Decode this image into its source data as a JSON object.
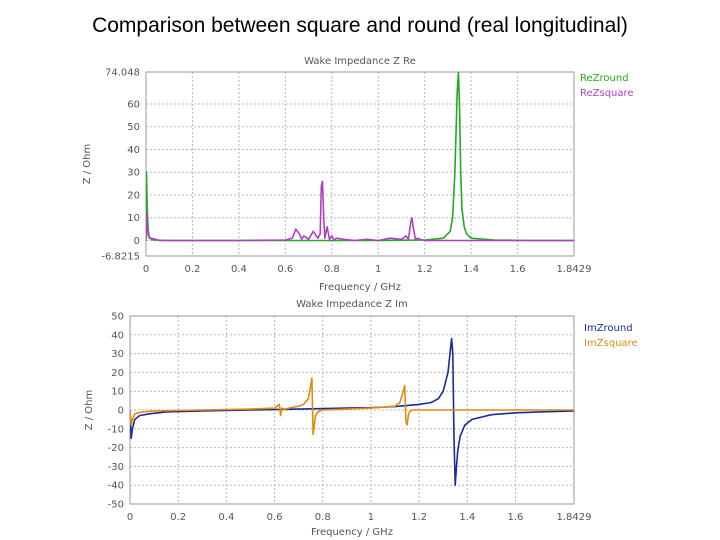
{
  "slide": {
    "title": "Comparison between square and round (real longitudinal)"
  },
  "chart_data": [
    {
      "type": "line",
      "title": "Wake Impedance Z Re",
      "xlabel": "Frequency / GHz",
      "ylabel": "Z / Ohm",
      "xlim": [
        0,
        1.8429
      ],
      "ylim": [
        -6.8215,
        74.048
      ],
      "xticks": [
        0,
        0.2,
        0.4,
        0.6,
        0.8,
        1,
        1.2,
        1.4,
        1.6,
        1.8429
      ],
      "xtick_labels": [
        "0",
        "0.2",
        "0.4",
        "0.6",
        "0.8",
        "1",
        "1.2",
        "1.4",
        "1.6",
        "1.8429"
      ],
      "yticks": [
        -6.8215,
        0,
        10,
        20,
        30,
        40,
        50,
        60,
        74.048
      ],
      "ytick_labels": [
        "-6.8215",
        "0",
        "10",
        "20",
        "30",
        "40",
        "50",
        "60",
        "74.048"
      ],
      "grid": true,
      "legend_position": "top-right",
      "series": [
        {
          "name": "ReZround",
          "color": "#22aa22",
          "x": [
            0,
            0.002,
            0.005,
            0.01,
            0.015,
            0.03,
            0.06,
            0.1,
            0.2,
            0.4,
            0.6,
            0.8,
            1.0,
            1.2,
            1.28,
            1.31,
            1.32,
            1.33,
            1.34,
            1.345,
            1.35,
            1.355,
            1.36,
            1.37,
            1.38,
            1.4,
            1.5,
            1.65,
            1.8429
          ],
          "y": [
            0,
            30,
            14,
            4,
            1,
            0.2,
            0.1,
            0,
            0,
            0,
            0,
            0,
            0,
            0.2,
            1,
            4,
            10,
            30,
            65,
            74,
            60,
            30,
            14,
            6,
            3,
            1,
            0.2,
            0,
            0
          ]
        },
        {
          "name": "ReZsquare",
          "color": "#b040c0",
          "x": [
            0,
            0.002,
            0.005,
            0.01,
            0.02,
            0.04,
            0.06,
            0.1,
            0.2,
            0.4,
            0.6,
            0.63,
            0.645,
            0.66,
            0.67,
            0.68,
            0.7,
            0.72,
            0.74,
            0.75,
            0.755,
            0.76,
            0.765,
            0.77,
            0.78,
            0.79,
            0.8,
            0.81,
            0.82,
            0.85,
            0.9,
            0.95,
            1.0,
            1.05,
            1.1,
            1.12,
            1.13,
            1.14,
            1.145,
            1.15,
            1.16,
            1.17,
            1.18,
            1.2,
            1.3,
            1.4,
            1.5,
            1.6,
            1.7,
            1.8429
          ],
          "y": [
            0,
            12,
            6,
            2,
            1,
            0.5,
            0,
            0,
            0,
            0,
            0.2,
            1,
            5,
            3,
            0.5,
            2,
            0.5,
            4,
            1,
            3,
            24,
            26,
            10,
            1,
            6,
            0.5,
            2,
            0,
            1,
            0.5,
            0,
            0.5,
            0,
            1,
            0.5,
            2,
            0.5,
            8,
            10,
            6,
            0.5,
            1,
            0.5,
            0,
            0,
            0,
            0,
            0,
            0,
            0
          ]
        }
      ]
    },
    {
      "type": "line",
      "title": "Wake Impedance Z Im",
      "xlabel": "Frequency / GHz",
      "ylabel": "Z / Ohm",
      "xlim": [
        0,
        1.8429
      ],
      "ylim": [
        -50,
        50
      ],
      "xticks": [
        0,
        0.2,
        0.4,
        0.6,
        0.8,
        1,
        1.2,
        1.4,
        1.6,
        1.8429
      ],
      "xtick_labels": [
        "0",
        "0.2",
        "0.4",
        "0.6",
        "0.8",
        "1",
        "1.2",
        "1.4",
        "1.6",
        "1.8429"
      ],
      "yticks": [
        -50,
        -40,
        -30,
        -20,
        -10,
        0,
        10,
        20,
        30,
        40,
        50
      ],
      "ytick_labels": [
        "-50",
        "-40",
        "-30",
        "-20",
        "-10",
        "0",
        "10",
        "20",
        "30",
        "40",
        "50"
      ],
      "grid": true,
      "legend_position": "top-right",
      "series": [
        {
          "name": "ImZround",
          "color": "#1a2a9a",
          "x": [
            0,
            0.005,
            0.01,
            0.02,
            0.04,
            0.08,
            0.15,
            0.3,
            0.5,
            0.7,
            0.9,
            1.0,
            1.1,
            1.2,
            1.25,
            1.28,
            1.3,
            1.32,
            1.335,
            1.34,
            1.345,
            1.35,
            1.355,
            1.36,
            1.37,
            1.39,
            1.42,
            1.5,
            1.6,
            1.7,
            1.8429
          ],
          "y": [
            0,
            -15,
            -10,
            -5,
            -3,
            -2,
            -1,
            -0.5,
            0,
            0.5,
            1,
            1.2,
            1.8,
            3,
            4,
            6,
            10,
            20,
            38,
            30,
            -15,
            -40,
            -30,
            -22,
            -14,
            -8,
            -5,
            -2.5,
            -1.5,
            -1,
            -0.5
          ]
        },
        {
          "name": "ImZsquare",
          "color": "#e08a10",
          "x": [
            0,
            0.005,
            0.01,
            0.02,
            0.05,
            0.1,
            0.3,
            0.5,
            0.6,
            0.62,
            0.625,
            0.63,
            0.64,
            0.7,
            0.72,
            0.74,
            0.75,
            0.755,
            0.76,
            0.765,
            0.77,
            0.78,
            0.8,
            0.9,
            1.0,
            1.1,
            1.12,
            1.13,
            1.14,
            1.145,
            1.15,
            1.155,
            1.16,
            1.17,
            1.2,
            1.3,
            1.5,
            1.7,
            1.8429
          ],
          "y": [
            0,
            -8,
            -5,
            -2,
            -1,
            -0.5,
            0,
            0.5,
            1,
            3,
            -3,
            1,
            0.5,
            2,
            3,
            6,
            13,
            17,
            -13,
            -8,
            -3,
            -1,
            0,
            0.5,
            1,
            2,
            4,
            8,
            13,
            -6,
            -8,
            -3,
            -1,
            0,
            0,
            0,
            0,
            0,
            0
          ]
        }
      ]
    }
  ]
}
